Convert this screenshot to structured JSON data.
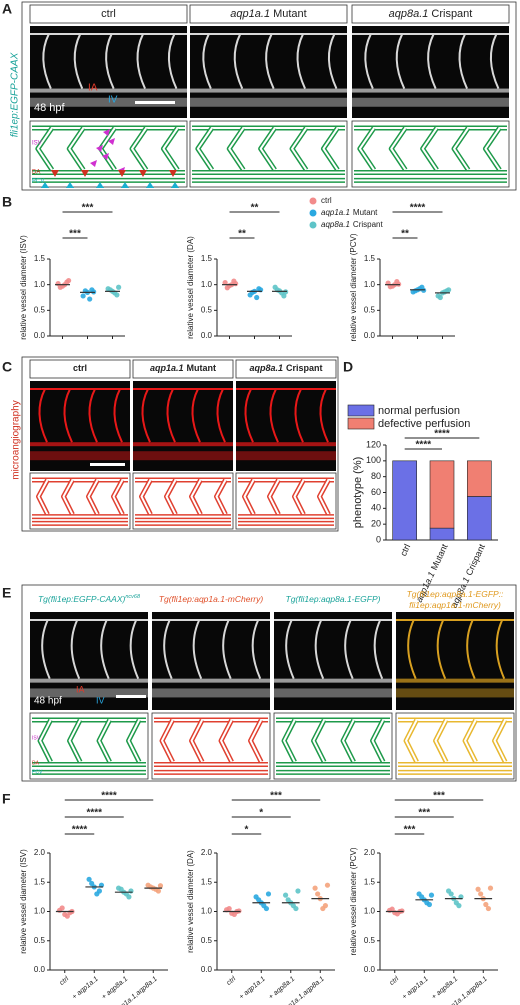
{
  "panel_labels": [
    "A",
    "B",
    "C",
    "D",
    "E",
    "F"
  ],
  "panel_a": {
    "side_label": "fli1ep:EGFP-CAAX",
    "columns": [
      {
        "text": "ctrl"
      },
      {
        "gene": "aqp1a.1",
        "text": "Mutant"
      },
      {
        "gene": "aqp8a.1",
        "text": "Crispant"
      }
    ],
    "stage": "48 hpf",
    "image_labels": [
      "IA",
      "IV"
    ],
    "diagram_labels": [
      "ISV",
      "DA",
      "PCV"
    ]
  },
  "legend_b": [
    {
      "text": "ctrl",
      "color": "#f28b8b"
    },
    {
      "gene": "aqp1a.1",
      "text": "Mutant",
      "color": "#2aa8e0"
    },
    {
      "gene": "aqp8a.1",
      "text": "Crispant",
      "color": "#5ec4c8"
    }
  ],
  "panel_c": {
    "side_label": "microangiography",
    "columns": [
      {
        "text": "ctrl"
      },
      {
        "gene": "aqp1a.1",
        "text": "Mutant"
      },
      {
        "gene": "aqp8a.1",
        "text": "Crispant"
      }
    ]
  },
  "panel_e": {
    "columns": [
      {
        "lines": [
          "Tg(fli1ep:EGFP-CAAX)"
        ],
        "sup": "ncv68",
        "color": "#1aa39a"
      },
      {
        "lines": [
          "Tg(fli1ep:aqp1a.1-mCherry)"
        ],
        "color": "#e0502a"
      },
      {
        "lines": [
          "Tg(fli1ep:aqp8a.1-EGFP)"
        ],
        "color": "#1aa39a"
      },
      {
        "lines": [
          "Tg(fli1ep:aqp8a.1-EGFP::",
          "fli1ep:aqp1a.1-mCherry)"
        ],
        "color": "#e09a20"
      }
    ],
    "stage": "48 hpf",
    "image_labels": [
      "IA",
      "IV"
    ],
    "diagram_labels": [
      "ISV",
      "DA",
      "PCV"
    ]
  },
  "chart_data": [
    {
      "type": "strip",
      "ylabel": "relative vessel diameter (ISV)",
      "ylim": [
        0,
        1.5
      ],
      "yticks": [
        {
          "value": 0,
          "label": "0.0"
        },
        {
          "value": 0.5,
          "label": "0.5"
        },
        {
          "value": 1,
          "label": "1.0"
        },
        {
          "value": 1.5,
          "label": "1.5"
        }
      ],
      "significance": [
        "***",
        "***"
      ],
      "groups": [
        {
          "color": "#f28b8b",
          "mean": 1.0,
          "points": [
            0.97,
            1.02,
            1.05,
            0.95,
            1.0,
            1.08
          ]
        },
        {
          "color": "#2aa8e0",
          "mean": 0.85,
          "points": [
            0.85,
            0.78,
            0.9,
            0.88,
            0.72,
            0.86
          ]
        },
        {
          "color": "#5ec4c8",
          "mean": 0.87,
          "points": [
            0.87,
            0.92,
            0.8,
            0.9,
            0.84,
            0.95
          ]
        }
      ]
    },
    {
      "type": "strip",
      "ylabel": "relative vessel diameter (DA)",
      "ylim": [
        0,
        1.5
      ],
      "yticks": [
        {
          "value": 0,
          "label": "0.0"
        },
        {
          "value": 0.5,
          "label": "0.5"
        },
        {
          "value": 1,
          "label": "1.0"
        },
        {
          "value": 1.5,
          "label": "1.5"
        }
      ],
      "significance": [
        "**",
        "**"
      ],
      "groups": [
        {
          "color": "#f28b8b",
          "mean": 1.0,
          "points": [
            0.98,
            1.04,
            1.07,
            0.94,
            1.0,
            1.02
          ]
        },
        {
          "color": "#2aa8e0",
          "mean": 0.87,
          "points": [
            0.87,
            0.8,
            0.92,
            0.85,
            0.75,
            0.9
          ]
        },
        {
          "color": "#5ec4c8",
          "mean": 0.87,
          "points": [
            0.88,
            0.95,
            0.78,
            0.9,
            0.84,
            0.86
          ]
        }
      ]
    },
    {
      "type": "strip",
      "ylabel": "relative vessel diameter (PCV)",
      "ylim": [
        0,
        1.5
      ],
      "yticks": [
        {
          "value": 0,
          "label": "0.0"
        },
        {
          "value": 0.5,
          "label": "0.5"
        },
        {
          "value": 1,
          "label": "1.0"
        },
        {
          "value": 1.5,
          "label": "1.5"
        }
      ],
      "significance": [
        "****",
        "**"
      ],
      "groups": [
        {
          "color": "#f28b8b",
          "mean": 1.0,
          "points": [
            0.97,
            1.03,
            1.06,
            0.96,
            1.0,
            1.01
          ]
        },
        {
          "color": "#2aa8e0",
          "mean": 0.9,
          "points": [
            0.9,
            0.86,
            0.95,
            0.88,
            0.92,
            0.89
          ]
        },
        {
          "color": "#5ec4c8",
          "mean": 0.84,
          "points": [
            0.84,
            0.78,
            0.88,
            0.75,
            0.86,
            0.9
          ]
        }
      ]
    },
    {
      "type": "stacked_bar",
      "ylabel": "phenotype (%)",
      "categories": [
        {
          "text": "ctrl"
        },
        {
          "gene": "aqp1a.1",
          "text": "Mutant"
        },
        {
          "gene": "aqp8a.1",
          "text": "Crispant"
        }
      ],
      "ylim": [
        0,
        120
      ],
      "yticks": [
        0,
        20,
        40,
        60,
        80,
        100,
        120
      ],
      "significance": [
        "****",
        "****"
      ],
      "series": [
        {
          "name": "normal perfusion",
          "color": "#6b70e6",
          "values": [
            100,
            15,
            55
          ]
        },
        {
          "name": "defective perfusion",
          "color": "#f07f72",
          "values": [
            0,
            85,
            45
          ]
        }
      ]
    },
    {
      "type": "strip",
      "ylabel": "relative vessel diameter (ISV)",
      "categories": [
        "ctrl",
        "+ aqp1a.1",
        "+ aqp8a.1",
        "+ aqp1a.1,aqp8a.1"
      ],
      "ylim": [
        0,
        2
      ],
      "yticks": [
        {
          "value": 0,
          "label": "0.0"
        },
        {
          "value": 0.5,
          "label": "0.5"
        },
        {
          "value": 1,
          "label": "1.0"
        },
        {
          "value": 1.5,
          "label": "1.5"
        },
        {
          "value": 2,
          "label": "2.0"
        }
      ],
      "significance": [
        "****",
        "****",
        "****"
      ],
      "groups": [
        {
          "color": "#f28b8b",
          "mean": 1.0,
          "points": [
            0.95,
            1.02,
            0.98,
            1.06,
            0.92,
            1.0
          ]
        },
        {
          "color": "#2aa8e0",
          "mean": 1.42,
          "points": [
            1.42,
            1.55,
            1.35,
            1.48,
            1.3,
            1.45
          ]
        },
        {
          "color": "#5ec4c8",
          "mean": 1.33,
          "points": [
            1.33,
            1.4,
            1.25,
            1.38,
            1.3,
            1.35
          ]
        },
        {
          "color": "#f4a37c",
          "mean": 1.4,
          "points": [
            1.4,
            1.45,
            1.35,
            1.42,
            1.38,
            1.44
          ]
        }
      ]
    },
    {
      "type": "strip",
      "ylabel": "relative vessel diameter (DA)",
      "categories": [
        "ctrl",
        "+ aqp1a.1",
        "+ aqp8a.1",
        "+ aqp1a.1,aqp8a.1"
      ],
      "ylim": [
        0,
        2
      ],
      "yticks": [
        {
          "value": 0,
          "label": "0.0"
        },
        {
          "value": 0.5,
          "label": "0.5"
        },
        {
          "value": 1,
          "label": "1.0"
        },
        {
          "value": 1.5,
          "label": "1.5"
        },
        {
          "value": 2,
          "label": "2.0"
        }
      ],
      "significance": [
        "***",
        "*",
        "*"
      ],
      "groups": [
        {
          "color": "#f28b8b",
          "mean": 1.0,
          "points": [
            0.97,
            1.03,
            1.0,
            1.05,
            0.95,
            1.01
          ]
        },
        {
          "color": "#2aa8e0",
          "mean": 1.15,
          "points": [
            1.15,
            1.25,
            1.05,
            1.2,
            1.1,
            1.3
          ]
        },
        {
          "color": "#5ec4c8",
          "mean": 1.15,
          "points": [
            1.15,
            1.28,
            1.05,
            1.2,
            1.1,
            1.35
          ]
        },
        {
          "color": "#f4a37c",
          "mean": 1.22,
          "points": [
            1.22,
            1.4,
            1.1,
            1.3,
            1.05,
            1.45
          ]
        }
      ]
    },
    {
      "type": "strip",
      "ylabel": "relative vessel diameter (PCV)",
      "categories": [
        "ctrl",
        "+ aqp1a.1",
        "+ aqp8a.1",
        "+ aqp1a.1,aqp8a.1"
      ],
      "ylim": [
        0,
        2
      ],
      "yticks": [
        {
          "value": 0,
          "label": "0.0"
        },
        {
          "value": 0.5,
          "label": "0.5"
        },
        {
          "value": 1,
          "label": "1.0"
        },
        {
          "value": 1.5,
          "label": "1.5"
        },
        {
          "value": 2,
          "label": "2.0"
        }
      ],
      "significance": [
        "***",
        "***",
        "***"
      ],
      "groups": [
        {
          "color": "#f28b8b",
          "mean": 1.0,
          "points": [
            0.98,
            1.02,
            1.0,
            1.04,
            0.96,
            1.01
          ]
        },
        {
          "color": "#2aa8e0",
          "mean": 1.2,
          "points": [
            1.2,
            1.3,
            1.12,
            1.25,
            1.15,
            1.28
          ]
        },
        {
          "color": "#5ec4c8",
          "mean": 1.22,
          "points": [
            1.22,
            1.35,
            1.1,
            1.3,
            1.15,
            1.25
          ]
        },
        {
          "color": "#f4a37c",
          "mean": 1.22,
          "points": [
            1.22,
            1.38,
            1.05,
            1.3,
            1.12,
            1.4
          ]
        }
      ]
    }
  ]
}
